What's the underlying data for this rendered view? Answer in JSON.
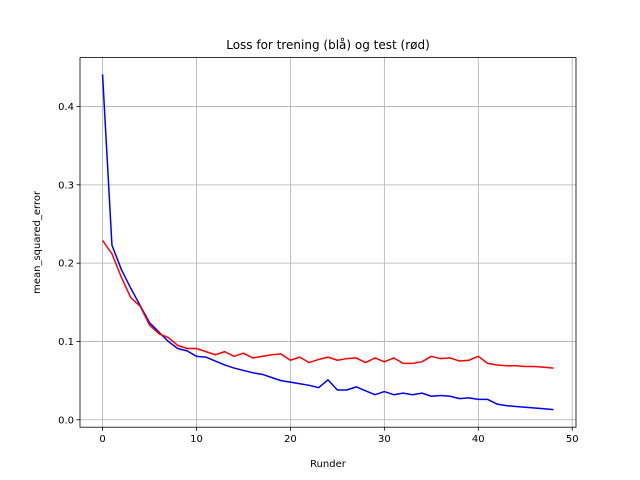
{
  "chart_data": {
    "type": "line",
    "title": "Loss for trening (blå) og test (rød)",
    "xlabel": "Runder",
    "ylabel": "mean_squared_error",
    "xlim": [
      -2.4,
      50.4
    ],
    "ylim": [
      -0.0095,
      0.4625
    ],
    "x_ticks": [
      0,
      10,
      20,
      30,
      40,
      50
    ],
    "y_ticks": [
      0.0,
      0.1,
      0.2,
      0.3,
      0.4
    ],
    "x_tick_labels": [
      "0",
      "10",
      "20",
      "30",
      "40",
      "50"
    ],
    "y_tick_labels": [
      "0.0",
      "0.1",
      "0.2",
      "0.3",
      "0.4"
    ],
    "grid": true,
    "legend": "none",
    "x": [
      0,
      1,
      2,
      3,
      4,
      5,
      6,
      7,
      8,
      9,
      10,
      11,
      12,
      13,
      14,
      15,
      16,
      17,
      18,
      19,
      20,
      21,
      22,
      23,
      24,
      25,
      26,
      27,
      28,
      29,
      30,
      31,
      32,
      33,
      34,
      35,
      36,
      37,
      38,
      39,
      40,
      41,
      42,
      43,
      44,
      45,
      46,
      47,
      48
    ],
    "series": [
      {
        "color": "#0000ff",
        "values": [
          0.441,
          0.223,
          0.192,
          0.168,
          0.146,
          0.124,
          0.112,
          0.1,
          0.091,
          0.088,
          0.081,
          0.08,
          0.075,
          0.07,
          0.066,
          0.063,
          0.06,
          0.058,
          0.054,
          0.05,
          0.048,
          0.046,
          0.044,
          0.041,
          0.051,
          0.038,
          0.038,
          0.042,
          0.037,
          0.032,
          0.036,
          0.032,
          0.034,
          0.032,
          0.034,
          0.03,
          0.031,
          0.03,
          0.027,
          0.028,
          0.026,
          0.026,
          0.02,
          0.018,
          0.017,
          0.016,
          0.015,
          0.014,
          0.013
        ]
      },
      {
        "color": "#ff0000",
        "values": [
          0.229,
          0.212,
          0.182,
          0.156,
          0.145,
          0.121,
          0.11,
          0.105,
          0.095,
          0.091,
          0.091,
          0.087,
          0.083,
          0.087,
          0.081,
          0.085,
          0.079,
          0.081,
          0.083,
          0.084,
          0.076,
          0.08,
          0.073,
          0.077,
          0.08,
          0.076,
          0.078,
          0.079,
          0.073,
          0.079,
          0.074,
          0.079,
          0.072,
          0.072,
          0.074,
          0.081,
          0.078,
          0.079,
          0.075,
          0.076,
          0.081,
          0.072,
          0.07,
          0.069,
          0.069,
          0.068,
          0.068,
          0.067,
          0.066
        ]
      }
    ]
  }
}
